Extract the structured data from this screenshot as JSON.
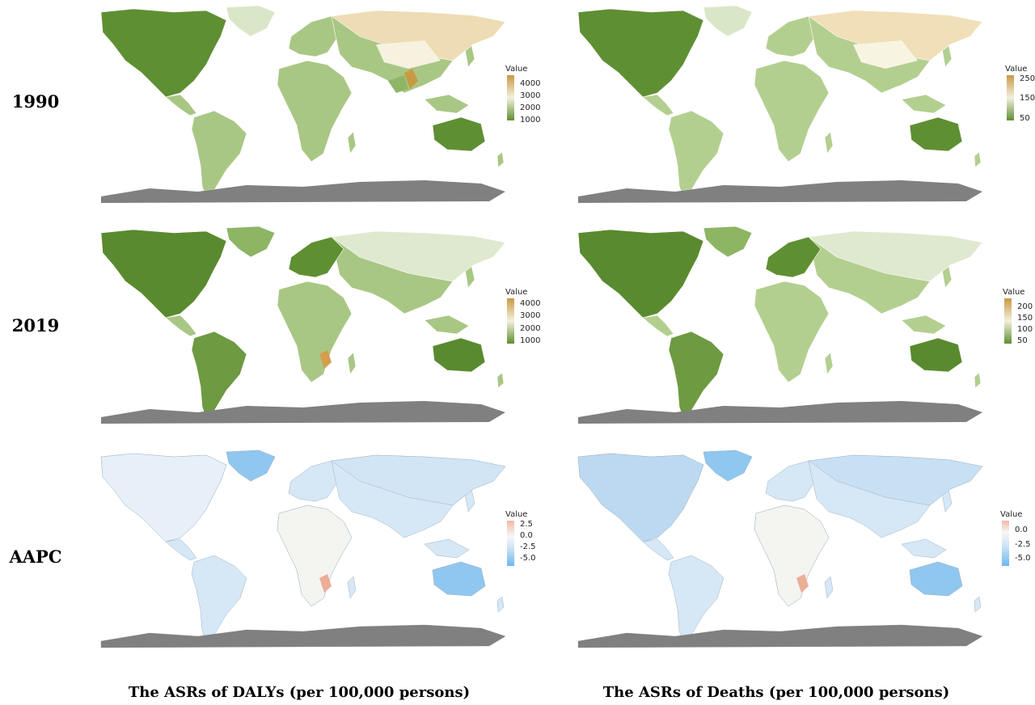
{
  "rows": [
    {
      "label": "1990"
    },
    {
      "label": "2019"
    },
    {
      "label": "AAPC"
    }
  ],
  "columns": [
    {
      "title": "The ASRs of DALYs (per 100,000 persons)"
    },
    {
      "title": "The ASRs of Deaths (per 100,000 persons)"
    }
  ],
  "legends": {
    "dalys_1990": {
      "title": "Value",
      "ticks": [
        "4000",
        "3000",
        "2000",
        "1000"
      ],
      "scale": "green-to-gold"
    },
    "deaths_1990": {
      "title": "Value",
      "ticks": [
        "250",
        "150",
        "50"
      ],
      "scale": "green-to-gold"
    },
    "dalys_2019": {
      "title": "Value",
      "ticks": [
        "4000",
        "3000",
        "2000",
        "1000"
      ],
      "scale": "green-to-gold"
    },
    "deaths_2019": {
      "title": "Value",
      "ticks": [
        "200",
        "150",
        "100",
        "50"
      ],
      "scale": "green-to-gold"
    },
    "dalys_aapc": {
      "title": "Value",
      "ticks": [
        "2.5",
        "0.0",
        "-2.5",
        "-5.0"
      ],
      "scale": "blue-to-red"
    },
    "deaths_aapc": {
      "title": "Value",
      "ticks": [
        "0.0",
        "-2.5",
        "-5.0"
      ],
      "scale": "blue-to-red"
    }
  },
  "colors": {
    "low_green": "#5f8f33",
    "mid_green": "#a9c784",
    "pale": "#f4f0dc",
    "gold": "#c89a45",
    "antarctica": "#808080",
    "aapc_blue": "#6cb8f0",
    "aapc_lightblue": "#cfe4f5",
    "aapc_white": "#f7f7f7",
    "aapc_red": "#f0b9a6"
  }
}
